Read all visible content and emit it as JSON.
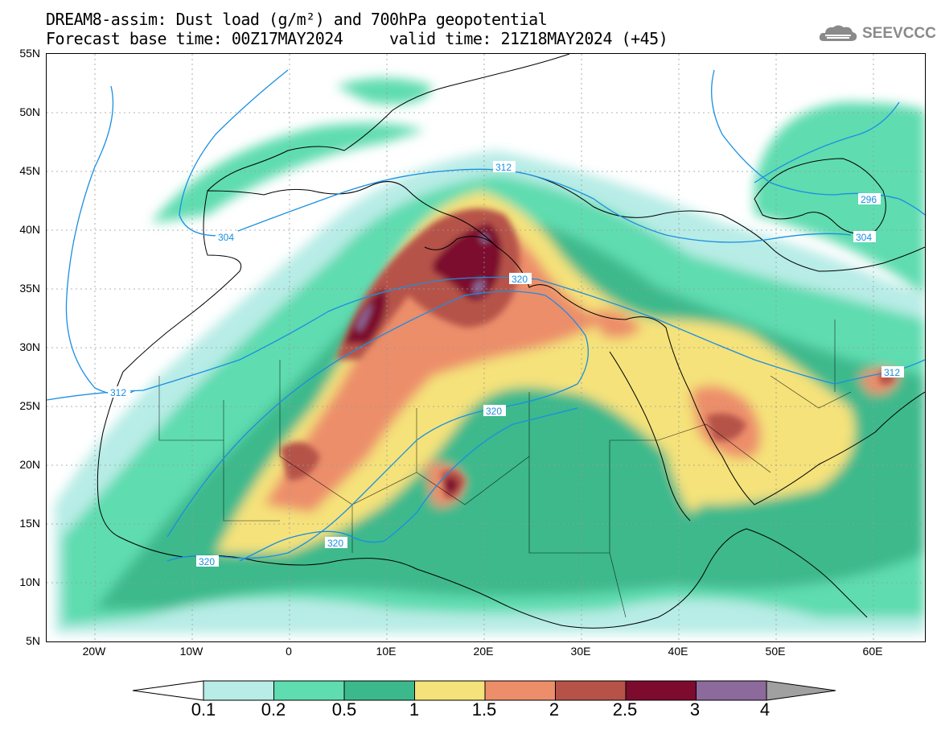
{
  "header": {
    "title_line1": "DREAM8-assim: Dust load (g/m²) and 700hPa geopotential",
    "title_line2": "Forecast base time: 00Z17MAY2024     valid time: 21Z18MAY2024 (+45)"
  },
  "logo": {
    "text": "SEEVCCC",
    "icon": "cloud-logo-icon"
  },
  "map": {
    "lat_labels": [
      "55N",
      "50N",
      "45N",
      "40N",
      "35N",
      "30N",
      "25N",
      "20N",
      "15N",
      "10N",
      "5N"
    ],
    "lon_labels": [
      "20W",
      "10W",
      "0",
      "10E",
      "20E",
      "30E",
      "40E",
      "50E",
      "60E"
    ],
    "contour_labels": [
      "312",
      "304",
      "304",
      "296",
      "320",
      "312",
      "320",
      "320",
      "320",
      "312"
    ]
  },
  "colorbar": {
    "labels": [
      "0.1",
      "0.2",
      "0.5",
      "1",
      "1.5",
      "2",
      "2.5",
      "3",
      "4"
    ],
    "colors": [
      "#b8ece6",
      "#5fdcb0",
      "#3cb98c",
      "#f5e27a",
      "#ec8e6a",
      "#b65248",
      "#7c0b2e",
      "#8c6a9c",
      "#a0a0a0"
    ]
  },
  "colors": {
    "contour": "#1a8fe0",
    "level1": "#b8ece6",
    "level2": "#5fdcb0",
    "level3": "#3cb98c",
    "level4": "#f5e27a",
    "level5": "#ec8e6a",
    "level6": "#b65248",
    "level7": "#7c0b2e",
    "level8": "#8c6a9c"
  }
}
